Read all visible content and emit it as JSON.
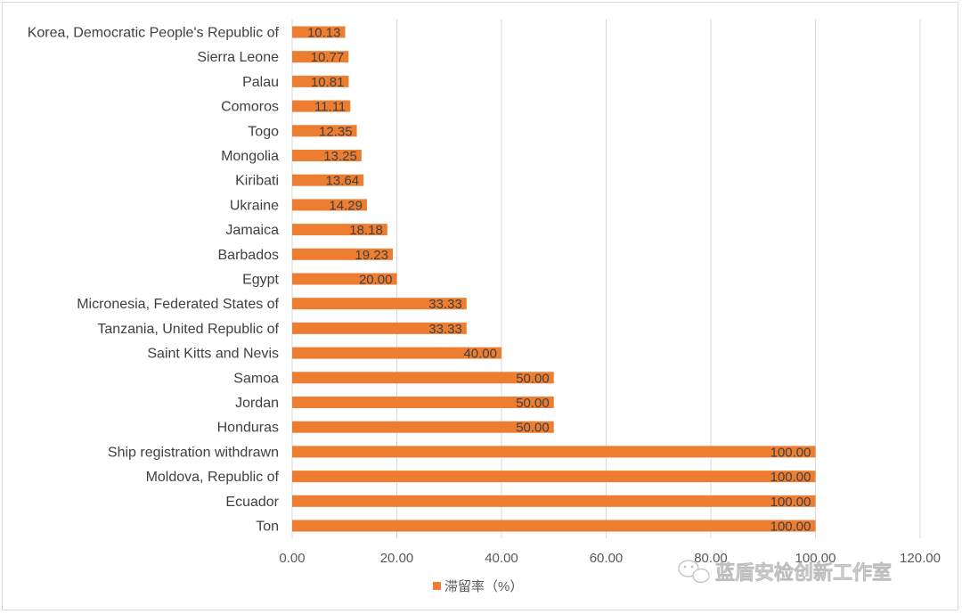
{
  "chart_data": {
    "type": "bar",
    "orientation": "horizontal",
    "categories": [
      "Korea, Democratic People's Republic of",
      "Sierra Leone",
      "Palau",
      "Comoros",
      "Togo",
      "Mongolia",
      "Kiribati",
      "Ukraine",
      "Jamaica",
      "Barbados",
      "Egypt",
      "Micronesia, Federated States of",
      "Tanzania, United Republic of",
      "Saint Kitts and Nevis",
      "Samoa",
      "Jordan",
      "Honduras",
      "Ship registration withdrawn",
      "Moldova, Republic of",
      "Ecuador",
      "Ton"
    ],
    "series": [
      {
        "name": "滞留率（%）",
        "color": "#ed7d31",
        "values": [
          10.13,
          10.77,
          10.81,
          11.11,
          12.35,
          13.25,
          13.64,
          14.29,
          18.18,
          19.23,
          20.0,
          33.33,
          33.33,
          40.0,
          50.0,
          50.0,
          50.0,
          100.0,
          100.0,
          100.0,
          100.0
        ],
        "labels": [
          "10.13",
          "10.77",
          "10.81",
          "11.11",
          "12.35",
          "13.25",
          "13.64",
          "14.29",
          "18.18",
          "19.23",
          "20.00",
          "33.33",
          "33.33",
          "40.00",
          "50.00",
          "50.00",
          "50.00",
          "100.00",
          "100.00",
          "100.00",
          "100.00"
        ]
      }
    ],
    "xlim": [
      0,
      120
    ],
    "xticks": [
      "0.00",
      "20.00",
      "40.00",
      "60.00",
      "80.00",
      "100.00",
      "120.00"
    ],
    "grid": true,
    "legend_position": "bottom"
  },
  "watermark": {
    "text": "蓝盾安检创新工作室",
    "icon": "wechat-icon"
  }
}
